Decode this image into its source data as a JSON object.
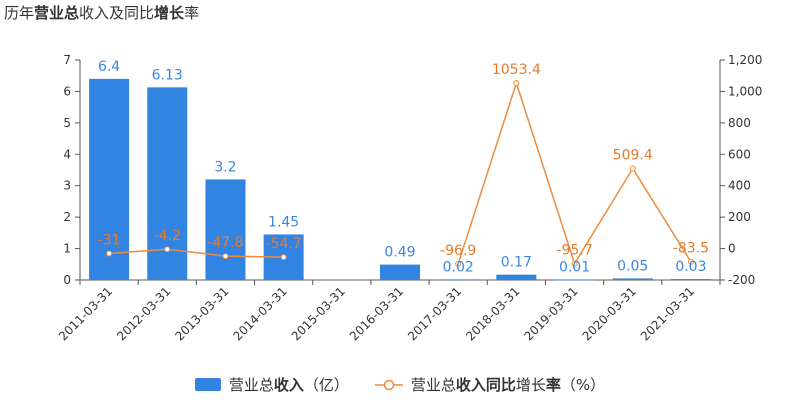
{
  "title": {
    "parts": [
      {
        "text": "历年",
        "bold": false
      },
      {
        "text": "营业总",
        "bold": true
      },
      {
        "text": "收入及同比",
        "bold": false
      },
      {
        "text": "增长",
        "bold": true
      },
      {
        "text": "率",
        "bold": false
      }
    ]
  },
  "colors": {
    "bar": "#3284e3",
    "line": "#f08b3b",
    "axis": "#555555",
    "label_bar": "#3a87e0",
    "label_line": "#e87a2a",
    "text": "#333333"
  },
  "legend": {
    "bar_parts": [
      {
        "text": "营业总",
        "bold": false
      },
      {
        "text": "收入",
        "bold": true
      },
      {
        "text": "（亿）",
        "bold": false
      }
    ],
    "line_parts": [
      {
        "text": "营业总",
        "bold": false
      },
      {
        "text": "收入同比",
        "bold": true
      },
      {
        "text": "增长",
        "bold": false
      },
      {
        "text": "率",
        "bold": true
      },
      {
        "text": "（%）",
        "bold": false
      }
    ]
  },
  "chart_data": {
    "type": "bar",
    "categories": [
      "2011-03-31",
      "2012-03-31",
      "2013-03-31",
      "2014-03-31",
      "2015-03-31",
      "2016-03-31",
      "2017-03-31",
      "2018-03-31",
      "2019-03-31",
      "2020-03-31",
      "2021-03-31"
    ],
    "series": [
      {
        "name": "营业总收入（亿）",
        "type": "bar",
        "axis": "left",
        "values": [
          6.4,
          6.13,
          3.2,
          1.45,
          null,
          0.49,
          0.02,
          0.17,
          0.01,
          0.05,
          0.03
        ],
        "labels": [
          "6.4",
          "6.13",
          "3.2",
          "1.45",
          "",
          "0.49",
          "0.02",
          "0.17",
          "0.01",
          "0.05",
          "0.03"
        ]
      },
      {
        "name": "营业总收入同比增长率（%）",
        "type": "line",
        "axis": "right",
        "segments": [
          [
            0,
            3
          ],
          [
            6,
            10
          ]
        ],
        "values": [
          -31,
          -4.2,
          -47.8,
          -54.7,
          null,
          null,
          -96.9,
          1053.4,
          -95.7,
          509.4,
          -83.5
        ],
        "labels": [
          "-31",
          "-4.2",
          "-47.8",
          "-54.7",
          "",
          "",
          "-96.9",
          "1053.4",
          "-95.7",
          "509.4",
          "-83.5"
        ]
      }
    ],
    "y_left": {
      "min": 0,
      "max": 7,
      "ticks": [
        "0",
        "1",
        "2",
        "3",
        "4",
        "5",
        "6",
        "7"
      ]
    },
    "y_right": {
      "min": -200,
      "max": 1200,
      "ticks": [
        "-200",
        "0",
        "200",
        "400",
        "600",
        "800",
        "1,000",
        "1,200"
      ]
    },
    "grid": false,
    "legend_position": "bottom"
  }
}
